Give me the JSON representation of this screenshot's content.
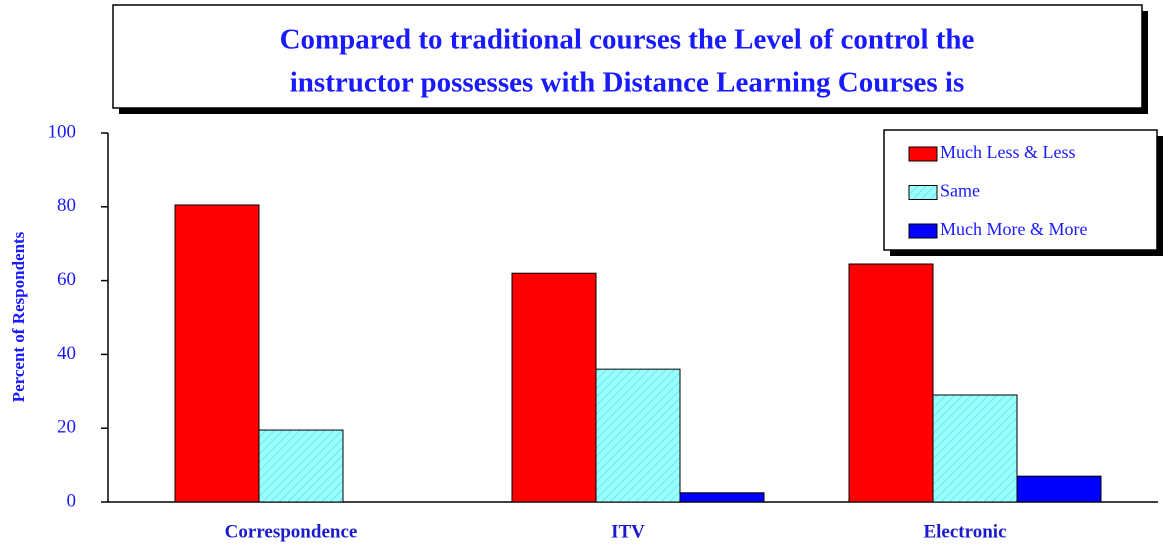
{
  "chart_data": {
    "type": "bar",
    "title_lines": [
      "Compared to traditional courses the Level of control the",
      "instructor possesses with Distance Learning Courses is"
    ],
    "y_label": "Percent of Respondents",
    "categories": [
      "Correspondence",
      "ITV",
      "Electronic"
    ],
    "series": [
      {
        "name": "Much Less & Less",
        "color": "#ff0000",
        "values": [
          80.5,
          62,
          64.5
        ]
      },
      {
        "name": "Same",
        "color": "#99ffff",
        "values": [
          19.5,
          36,
          29
        ]
      },
      {
        "name": "Much More & More",
        "color": "#0000ff",
        "values": [
          0,
          2.5,
          7
        ]
      }
    ],
    "ylim": [
      0,
      100
    ],
    "yticks": [
      0,
      20,
      40,
      60,
      80,
      100
    ],
    "grid": false,
    "legend": "top-right"
  }
}
